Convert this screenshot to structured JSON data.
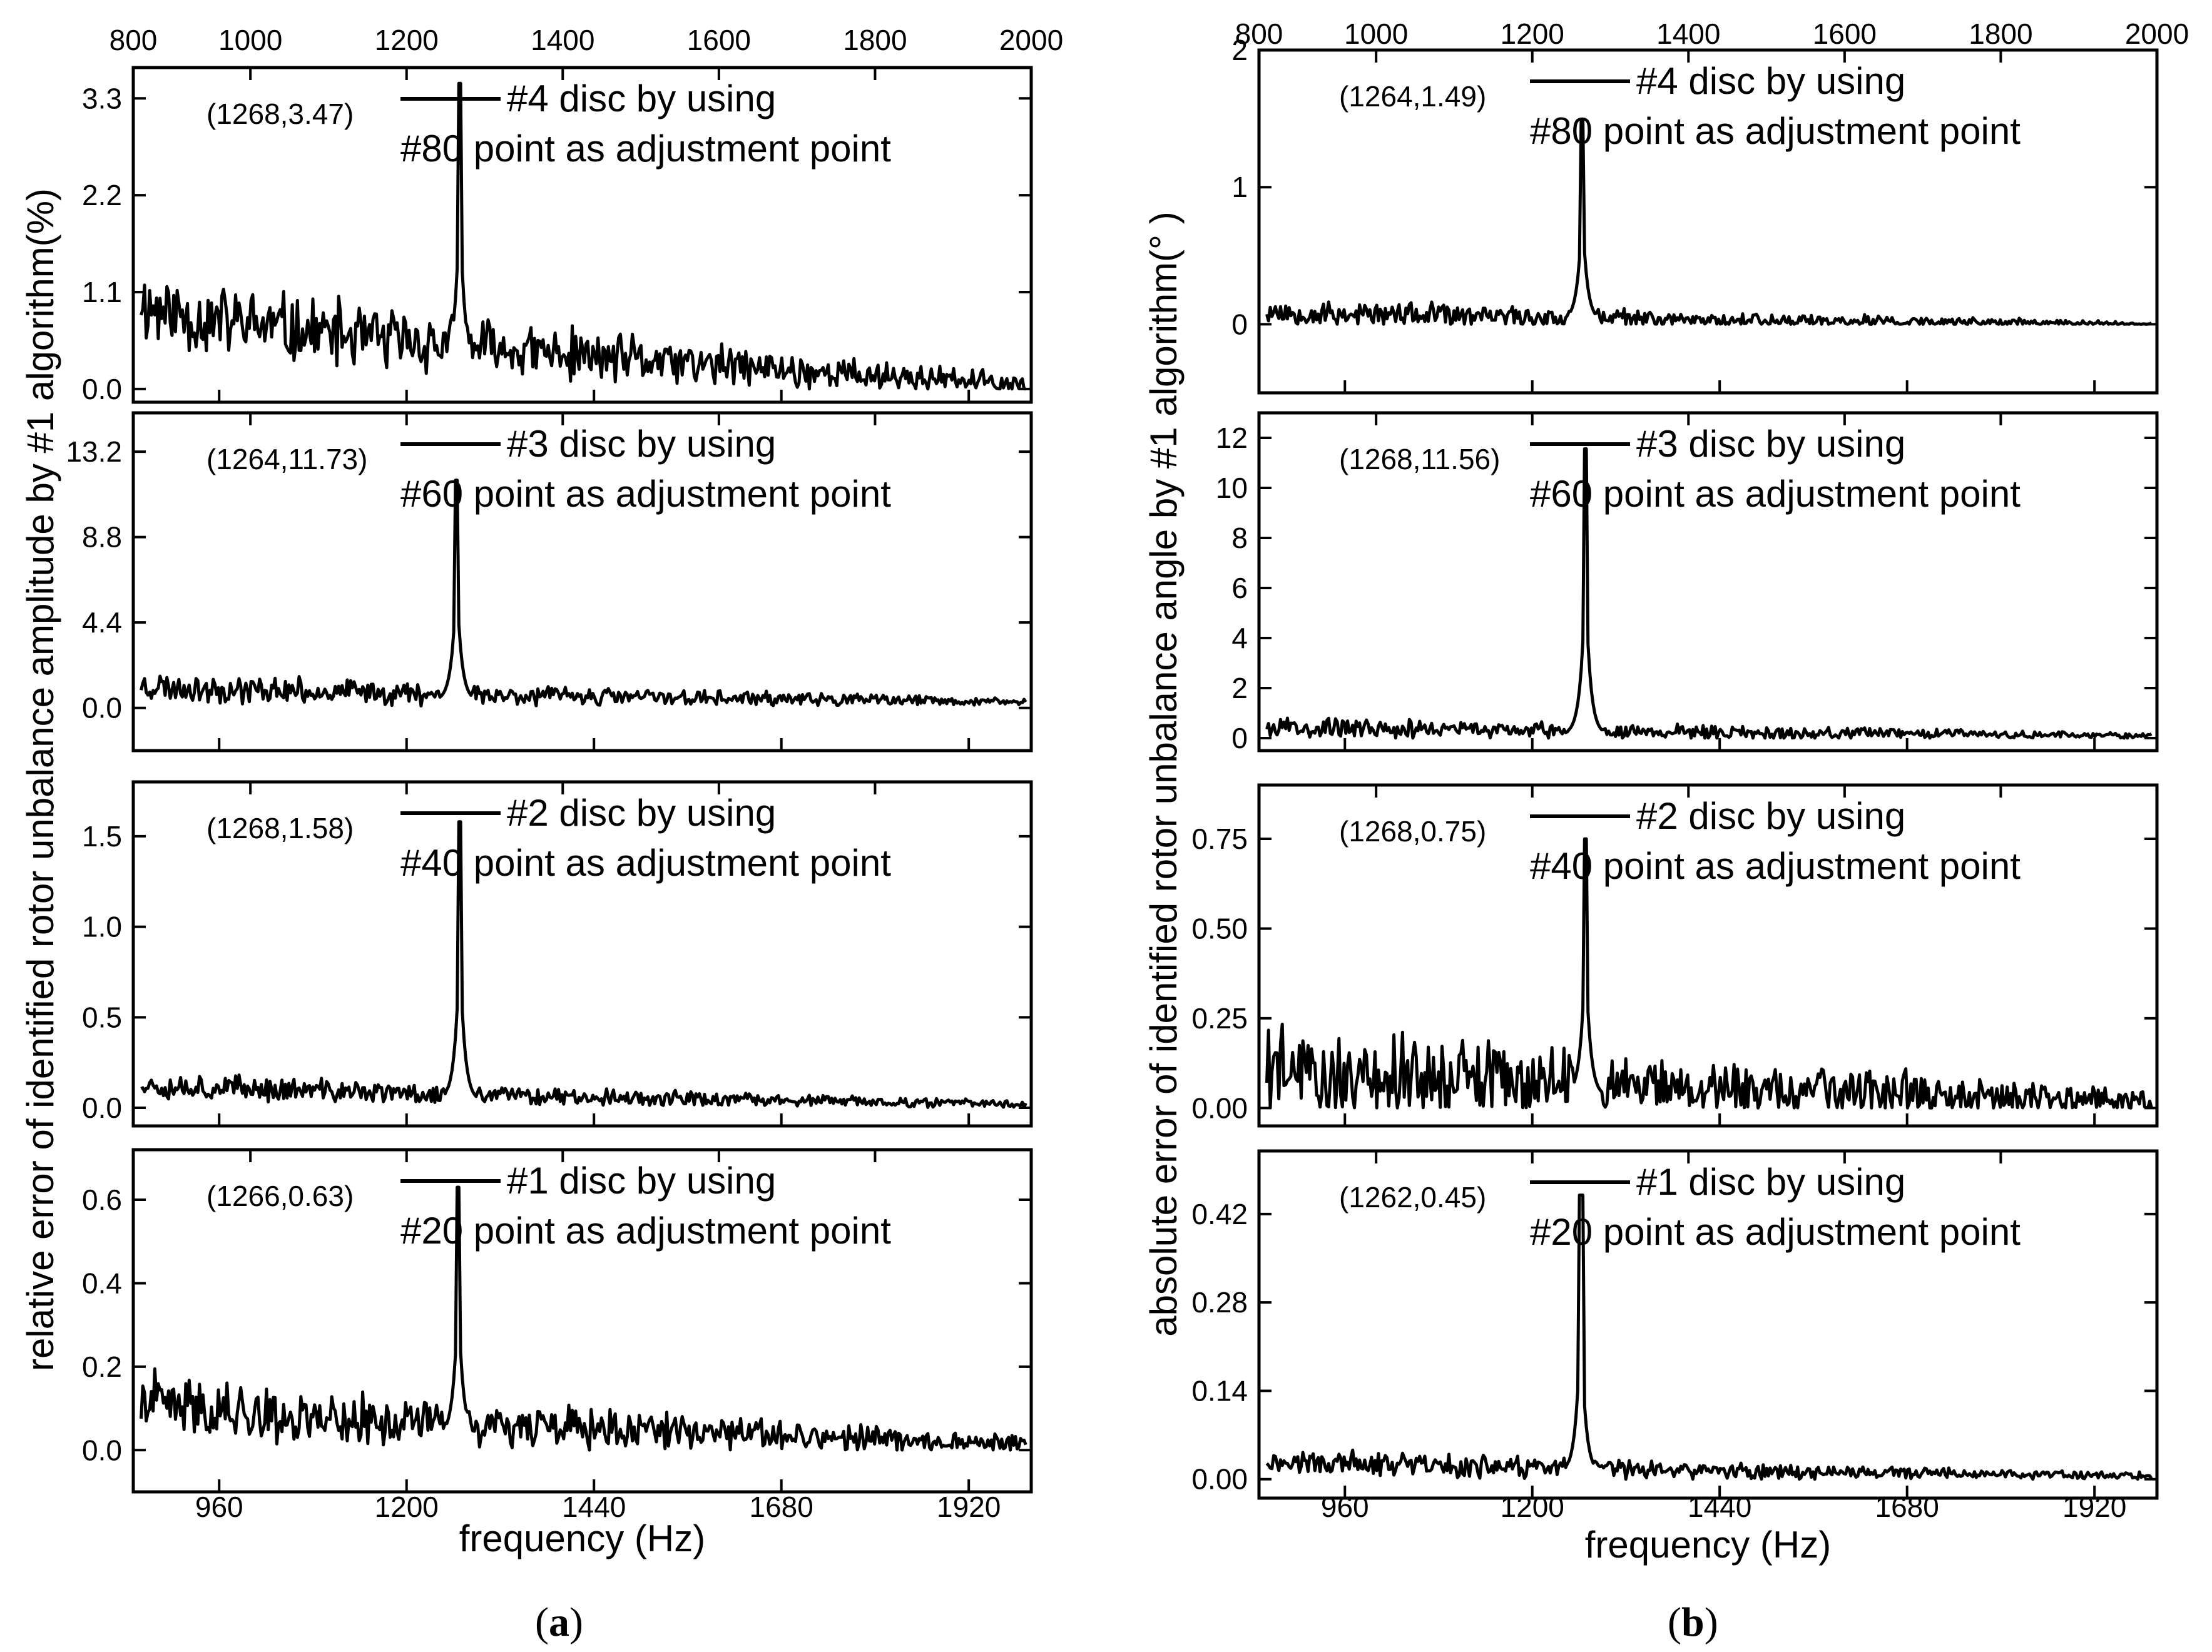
{
  "chart_data": [
    {
      "id": "a",
      "type": "line",
      "label": "(a)",
      "label_prefix": "(",
      "label_letter": "a",
      "label_suffix": ")",
      "xlabel": "frequency (Hz)",
      "ylabel": "relative error of identified rotor unbalance amplitude by #1 algorithm(%)",
      "xlim": [
        850,
        2000
      ],
      "x_ticks_bottom": [
        "960",
        "1200",
        "1440",
        "1680",
        "1920"
      ],
      "x_ticks_top": [
        "800",
        "1000",
        "1200",
        "1400",
        "1600",
        "1800",
        "2000"
      ],
      "panels": [
        {
          "ylim": [
            -0.15,
            3.65
          ],
          "y_ticks": [
            "0.0",
            "1.1",
            "2.2",
            "3.3"
          ],
          "legend_line1": "#4 disc by using",
          "legend_line2": "#80 point as adjustment point",
          "annotation": "(1268,3.47)",
          "peak": {
            "x": 1268,
            "y": 3.47
          },
          "baseline": {
            "start": 1.0,
            "end": 0.05,
            "noise": 0.55,
            "floor": 0.0
          },
          "seed": 11
        },
        {
          "ylim": [
            -2.2,
            15.2
          ],
          "y_ticks": [
            "0.0",
            "4.4",
            "8.8",
            "13.2"
          ],
          "legend_line1": "#3 disc by using",
          "legend_line2": "#60 point as adjustment point",
          "annotation": "(1264,11.73)",
          "peak": {
            "x": 1264,
            "y": 11.73
          },
          "baseline": {
            "start": 1.2,
            "end": 0.3,
            "noise": 0.9,
            "floor": 0.0
          },
          "seed": 23
        },
        {
          "ylim": [
            -0.1,
            1.8
          ],
          "y_ticks": [
            "0.0",
            "0.5",
            "1.0",
            "1.5"
          ],
          "legend_line1": "#2 disc by using",
          "legend_line2": "#40 point as adjustment point",
          "annotation": "(1268,1.58)",
          "peak": {
            "x": 1268,
            "y": 1.58
          },
          "baseline": {
            "start": 0.14,
            "end": 0.02,
            "noise": 0.09,
            "floor": 0.0
          },
          "seed": 37
        },
        {
          "ylim": [
            -0.1,
            0.72
          ],
          "y_ticks": [
            "0.0",
            "0.2",
            "0.4",
            "0.6"
          ],
          "legend_line1": "#1 disc by using",
          "legend_line2": "#20 point as adjustment point",
          "annotation": "(1266,0.63)",
          "peak": {
            "x": 1266,
            "y": 0.63
          },
          "baseline": {
            "start": 0.12,
            "end": 0.015,
            "noise": 0.09,
            "floor": 0.0
          },
          "seed": 41
        }
      ]
    },
    {
      "id": "b",
      "type": "line",
      "label": "(b)",
      "label_prefix": "(",
      "label_letter": "b",
      "label_suffix": ")",
      "xlabel": "frequency (Hz)",
      "ylabel": "absolute error of identified rotor unbalance angle by #1 algorithm(° )",
      "xlim": [
        850,
        2000
      ],
      "x_ticks_bottom": [
        "960",
        "1200",
        "1440",
        "1680",
        "1920"
      ],
      "x_ticks_top": [
        "800",
        "1000",
        "1200",
        "1400",
        "1600",
        "1800",
        "2000"
      ],
      "panels": [
        {
          "ylim": [
            -0.5,
            2.0
          ],
          "y_ticks": [
            "0",
            "1",
            "2"
          ],
          "legend_line1": "#4 disc by using",
          "legend_line2": "#80 point as adjustment point",
          "annotation": "(1264,1.49)",
          "peak": {
            "x": 1264,
            "y": 1.49
          },
          "baseline": {
            "start": 0.1,
            "end": 0.0,
            "noise": 0.12,
            "floor": 0.0
          },
          "seed": 53
        },
        {
          "ylim": [
            -0.5,
            13.0
          ],
          "y_ticks": [
            "0",
            "2",
            "4",
            "6",
            "8",
            "10",
            "12"
          ],
          "legend_line1": "#3 disc by using",
          "legend_line2": "#60 point as adjustment point",
          "annotation": "(1268,11.56)",
          "peak": {
            "x": 1268,
            "y": 11.56
          },
          "baseline": {
            "start": 0.5,
            "end": 0.1,
            "noise": 0.5,
            "floor": 0.0
          },
          "seed": 67
        },
        {
          "ylim": [
            -0.05,
            0.9
          ],
          "y_ticks": [
            "0.00",
            "0.25",
            "0.50",
            "0.75"
          ],
          "legend_line1": "#2 disc by using",
          "legend_line2": "#40 point as adjustment point",
          "annotation": "(1268,0.75)",
          "peak": {
            "x": 1268,
            "y": 0.75
          },
          "baseline": {
            "start": 0.12,
            "end": 0.02,
            "noise": 0.16,
            "floor": 0.0
          },
          "seed": 79
        },
        {
          "ylim": [
            -0.03,
            0.52
          ],
          "y_ticks": [
            "0.00",
            "0.14",
            "0.28",
            "0.42"
          ],
          "legend_line1": "#1 disc by using",
          "legend_line2": "#20 point as adjustment point",
          "annotation": "(1262,0.45)",
          "peak": {
            "x": 1262,
            "y": 0.45
          },
          "baseline": {
            "start": 0.03,
            "end": 0.005,
            "noise": 0.025,
            "floor": 0.0
          },
          "seed": 97
        }
      ]
    }
  ]
}
